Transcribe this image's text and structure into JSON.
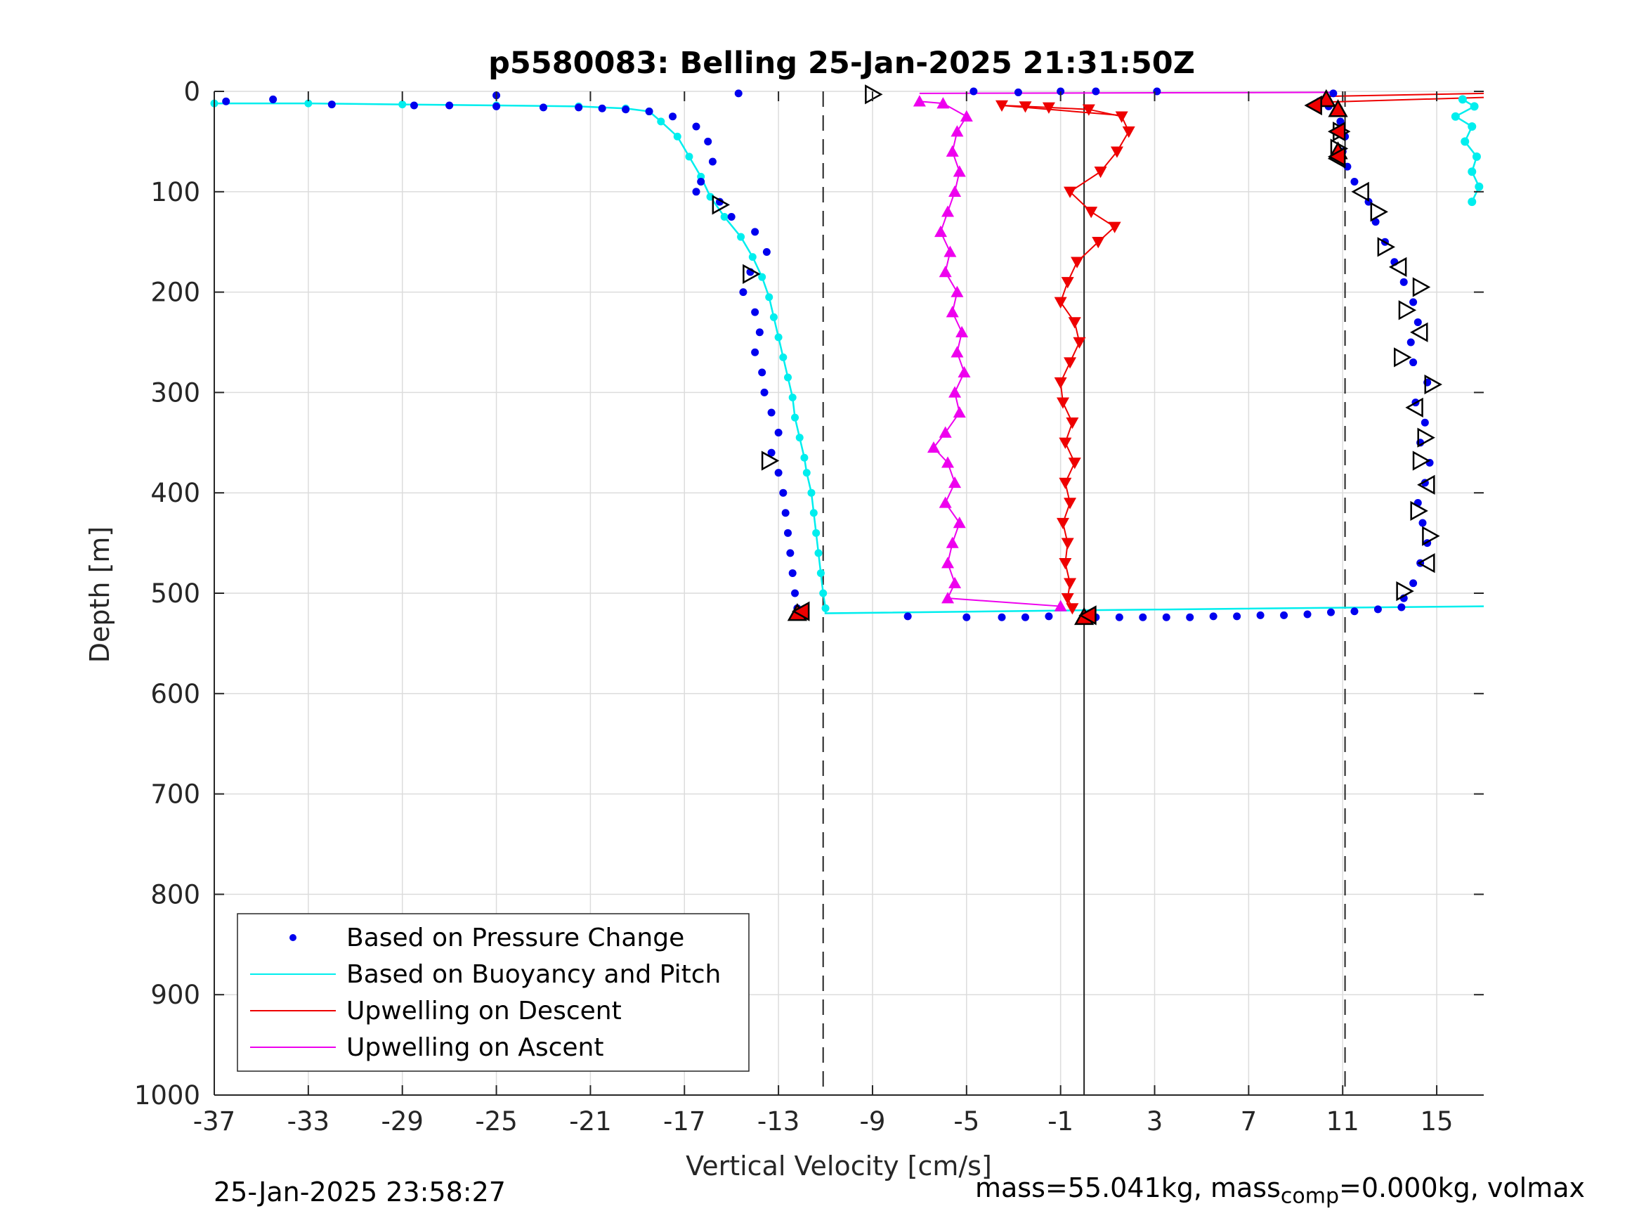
{
  "chart_data": {
    "type": "scatter",
    "title": "p5580083: Belling 25-Jan-2025 21:31:50Z",
    "xlabel": "Vertical Velocity [cm/s]",
    "ylabel": "Depth [m]",
    "xlim": [
      -37,
      17
    ],
    "ylim": [
      1000,
      0
    ],
    "y_reversed": true,
    "x_ticks": [
      -37,
      -33,
      -29,
      -25,
      -21,
      -17,
      -13,
      -9,
      -5,
      -1,
      3,
      7,
      11,
      15
    ],
    "y_ticks": [
      0,
      100,
      200,
      300,
      400,
      500,
      600,
      700,
      800,
      900,
      1000
    ],
    "grid": true,
    "legend_position": "bottom-left",
    "reference_lines": [
      {
        "x": -11.1,
        "style": "dashed"
      },
      {
        "x": 0,
        "style": "solid"
      },
      {
        "x": 11.1,
        "style": "dashed"
      }
    ],
    "series": [
      {
        "name": "Based on Pressure Change",
        "marker": "dot",
        "color": "#0000ee",
        "profile_descent": [
          [
            -36.5,
            10
          ],
          [
            -34.5,
            8
          ],
          [
            -32,
            13
          ],
          [
            -28.5,
            14
          ],
          [
            -27,
            14
          ],
          [
            -25,
            4
          ],
          [
            -25,
            15
          ],
          [
            -23,
            16
          ],
          [
            -21.5,
            16
          ],
          [
            -20.5,
            17
          ],
          [
            -19.5,
            18
          ],
          [
            -18.5,
            20
          ],
          [
            -17.5,
            25
          ],
          [
            -16.5,
            35
          ],
          [
            -16.0,
            50
          ],
          [
            -15.8,
            70
          ],
          [
            -16.3,
            90
          ],
          [
            -16.5,
            100
          ],
          [
            -15.5,
            110
          ],
          [
            -15.0,
            125
          ],
          [
            -14.0,
            140
          ],
          [
            -13.5,
            160
          ],
          [
            -14.2,
            180
          ],
          [
            -14.5,
            200
          ],
          [
            -14.0,
            220
          ],
          [
            -13.8,
            240
          ],
          [
            -14.0,
            260
          ],
          [
            -13.7,
            280
          ],
          [
            -13.6,
            300
          ],
          [
            -13.3,
            320
          ],
          [
            -13.0,
            340
          ],
          [
            -13.3,
            360
          ],
          [
            -13.0,
            380
          ],
          [
            -12.8,
            400
          ],
          [
            -12.7,
            420
          ],
          [
            -12.6,
            440
          ],
          [
            -12.5,
            460
          ],
          [
            -12.4,
            480
          ],
          [
            -12.3,
            500
          ],
          [
            -12.2,
            515
          ]
        ],
        "bottom_turn": [
          [
            -7.5,
            523
          ],
          [
            -5,
            524
          ],
          [
            -3.5,
            524
          ],
          [
            -2.5,
            524
          ],
          [
            -1.5,
            523
          ],
          [
            0.5,
            524
          ],
          [
            1.5,
            524
          ],
          [
            2.5,
            524
          ],
          [
            3.5,
            524
          ],
          [
            4.5,
            524
          ],
          [
            5.5,
            523
          ],
          [
            6.5,
            523
          ],
          [
            7.5,
            522
          ],
          [
            8.5,
            522
          ],
          [
            9.5,
            521
          ],
          [
            10.5,
            519
          ],
          [
            11.5,
            518
          ],
          [
            12.5,
            516
          ],
          [
            13.5,
            514
          ]
        ],
        "profile_ascent": [
          [
            13.6,
            505
          ],
          [
            14.0,
            490
          ],
          [
            14.3,
            470
          ],
          [
            14.6,
            450
          ],
          [
            14.4,
            430
          ],
          [
            14.2,
            410
          ],
          [
            14.5,
            390
          ],
          [
            14.7,
            370
          ],
          [
            14.3,
            350
          ],
          [
            14.5,
            330
          ],
          [
            14.1,
            310
          ],
          [
            14.6,
            290
          ],
          [
            14.0,
            270
          ],
          [
            13.9,
            250
          ],
          [
            14.2,
            230
          ],
          [
            14.0,
            210
          ],
          [
            13.6,
            190
          ],
          [
            13.2,
            170
          ],
          [
            12.8,
            150
          ],
          [
            12.4,
            130
          ],
          [
            12.1,
            110
          ],
          [
            11.5,
            90
          ],
          [
            11.2,
            75
          ],
          [
            11.0,
            60
          ],
          [
            11.1,
            45
          ],
          [
            10.9,
            30
          ],
          [
            10.4,
            15
          ],
          [
            10.0,
            10
          ]
        ],
        "surface": [
          [
            -14.7,
            2
          ],
          [
            -1.0,
            0
          ],
          [
            0.5,
            0
          ],
          [
            3.1,
            0
          ],
          [
            -4.7,
            0
          ],
          [
            -2.8,
            1
          ],
          [
            10.6,
            2
          ]
        ]
      },
      {
        "name": "Based on Buoyancy and Pitch",
        "marker": "line+dot",
        "color": "#00eeee",
        "profile_descent": [
          [
            -37.0,
            12
          ],
          [
            -33,
            12
          ],
          [
            -29,
            13
          ],
          [
            -25,
            14
          ],
          [
            -21.5,
            15
          ],
          [
            -19.5,
            17
          ],
          [
            -18.5,
            20
          ],
          [
            -18,
            30
          ],
          [
            -17.3,
            45
          ],
          [
            -16.8,
            65
          ],
          [
            -16.3,
            85
          ],
          [
            -15.9,
            105
          ],
          [
            -15.3,
            125
          ],
          [
            -14.6,
            145
          ],
          [
            -14.1,
            165
          ],
          [
            -13.7,
            185
          ],
          [
            -13.4,
            205
          ],
          [
            -13.2,
            225
          ],
          [
            -13.0,
            245
          ],
          [
            -12.8,
            265
          ],
          [
            -12.6,
            285
          ],
          [
            -12.4,
            305
          ],
          [
            -12.3,
            325
          ],
          [
            -12.1,
            345
          ],
          [
            -11.9,
            365
          ],
          [
            -11.8,
            380
          ],
          [
            -11.6,
            400
          ],
          [
            -11.5,
            420
          ],
          [
            -11.4,
            440
          ],
          [
            -11.3,
            460
          ],
          [
            -11.2,
            480
          ],
          [
            -11.1,
            500
          ],
          [
            -11.0,
            515
          ]
        ],
        "bottom_turn": [
          [
            -11.0,
            520
          ],
          [
            0,
            517
          ],
          [
            17,
            513
          ]
        ],
        "profile_ascent": [
          [
            16.5,
            110
          ],
          [
            16.8,
            95
          ],
          [
            16.5,
            80
          ],
          [
            16.7,
            65
          ],
          [
            16.2,
            50
          ],
          [
            16.5,
            35
          ],
          [
            15.8,
            25
          ],
          [
            16.6,
            15
          ],
          [
            16.1,
            8
          ]
        ]
      },
      {
        "name": "Upwelling on Descent",
        "marker": "down-triangle",
        "color": "#ee0000",
        "points": [
          [
            -3.5,
            14
          ],
          [
            -2.5,
            15
          ],
          [
            -1.5,
            16
          ],
          [
            0.2,
            18
          ],
          [
            1.6,
            25
          ],
          [
            1.9,
            40
          ],
          [
            1.4,
            60
          ],
          [
            0.7,
            80
          ],
          [
            -0.6,
            100
          ],
          [
            0.3,
            120
          ],
          [
            1.3,
            135
          ],
          [
            0.6,
            150
          ],
          [
            -0.3,
            170
          ],
          [
            -0.7,
            190
          ],
          [
            -1.0,
            210
          ],
          [
            -0.4,
            230
          ],
          [
            -0.2,
            250
          ],
          [
            -0.6,
            270
          ],
          [
            -1.0,
            290
          ],
          [
            -0.9,
            310
          ],
          [
            -0.5,
            330
          ],
          [
            -0.8,
            350
          ],
          [
            -0.4,
            370
          ],
          [
            -0.8,
            390
          ],
          [
            -0.6,
            410
          ],
          [
            -0.9,
            430
          ],
          [
            -0.7,
            450
          ],
          [
            -0.8,
            470
          ],
          [
            -0.6,
            490
          ],
          [
            -0.7,
            505
          ],
          [
            -0.5,
            515
          ]
        ]
      },
      {
        "name": "Upwelling on Ascent",
        "marker": "up-triangle",
        "color": "#ee00ee",
        "points": [
          [
            -7.0,
            10
          ],
          [
            -6.0,
            12
          ],
          [
            -5.0,
            25
          ],
          [
            -5.4,
            40
          ],
          [
            -5.6,
            60
          ],
          [
            -5.3,
            80
          ],
          [
            -5.5,
            100
          ],
          [
            -5.8,
            120
          ],
          [
            -6.1,
            140
          ],
          [
            -5.7,
            160
          ],
          [
            -5.9,
            180
          ],
          [
            -5.4,
            200
          ],
          [
            -5.6,
            220
          ],
          [
            -5.2,
            240
          ],
          [
            -5.4,
            260
          ],
          [
            -5.1,
            280
          ],
          [
            -5.5,
            300
          ],
          [
            -5.3,
            320
          ],
          [
            -5.9,
            340
          ],
          [
            -6.4,
            355
          ],
          [
            -5.8,
            370
          ],
          [
            -5.5,
            390
          ],
          [
            -5.9,
            410
          ],
          [
            -5.3,
            430
          ],
          [
            -5.6,
            450
          ],
          [
            -5.8,
            470
          ],
          [
            -5.5,
            490
          ],
          [
            -5.8,
            505
          ],
          [
            -1.0,
            513
          ]
        ]
      }
    ],
    "markers": {
      "description": "open black triangles along profiles; red-filled triangles at turn points",
      "open_triangles": [
        [
          -9.0,
          3
        ],
        [
          -15.5,
          113
        ],
        [
          -14.2,
          182
        ],
        [
          -13.4,
          368
        ],
        [
          10.8,
          67
        ],
        [
          10.9,
          40
        ],
        [
          10.8,
          57
        ],
        [
          11.8,
          100
        ],
        [
          12.5,
          120
        ],
        [
          12.8,
          155
        ],
        [
          13.4,
          175
        ],
        [
          14.3,
          195
        ],
        [
          13.7,
          218
        ],
        [
          14.3,
          240
        ],
        [
          13.5,
          265
        ],
        [
          14.8,
          292
        ],
        [
          14.1,
          315
        ],
        [
          14.5,
          345
        ],
        [
          14.3,
          368
        ],
        [
          14.6,
          392
        ],
        [
          14.2,
          418
        ],
        [
          14.7,
          443
        ],
        [
          14.6,
          470
        ],
        [
          13.6,
          498
        ]
      ],
      "filled_red_triangles": [
        [
          -12.2,
          520
        ],
        [
          -12.0,
          518
        ],
        [
          0.0,
          524
        ],
        [
          0.2,
          522
        ],
        [
          10.3,
          8
        ],
        [
          9.8,
          14
        ],
        [
          10.8,
          18
        ],
        [
          10.8,
          40
        ],
        [
          10.8,
          60
        ],
        [
          10.8,
          65
        ]
      ]
    },
    "surface_lines": [
      {
        "color": "#ee0000",
        "from": [
          10.3,
          5
        ],
        "to": [
          17,
          2
        ]
      },
      {
        "color": "#ee0000",
        "from": [
          9.8,
          11
        ],
        "to": [
          17,
          6
        ]
      },
      {
        "color": "#ee00ee",
        "from": [
          -7.0,
          2
        ],
        "to": [
          10.5,
          1
        ]
      },
      {
        "color": "#ee0000",
        "from": [
          -3.5,
          14
        ],
        "to": [
          1.6,
          24
        ]
      }
    ]
  },
  "footer": {
    "timestamp": "25-Jan-2025 23:58:27",
    "params_prefix": "mass=55.041kg, mass",
    "params_sub": "comp",
    "params_suffix": "=0.000kg, volmax"
  }
}
